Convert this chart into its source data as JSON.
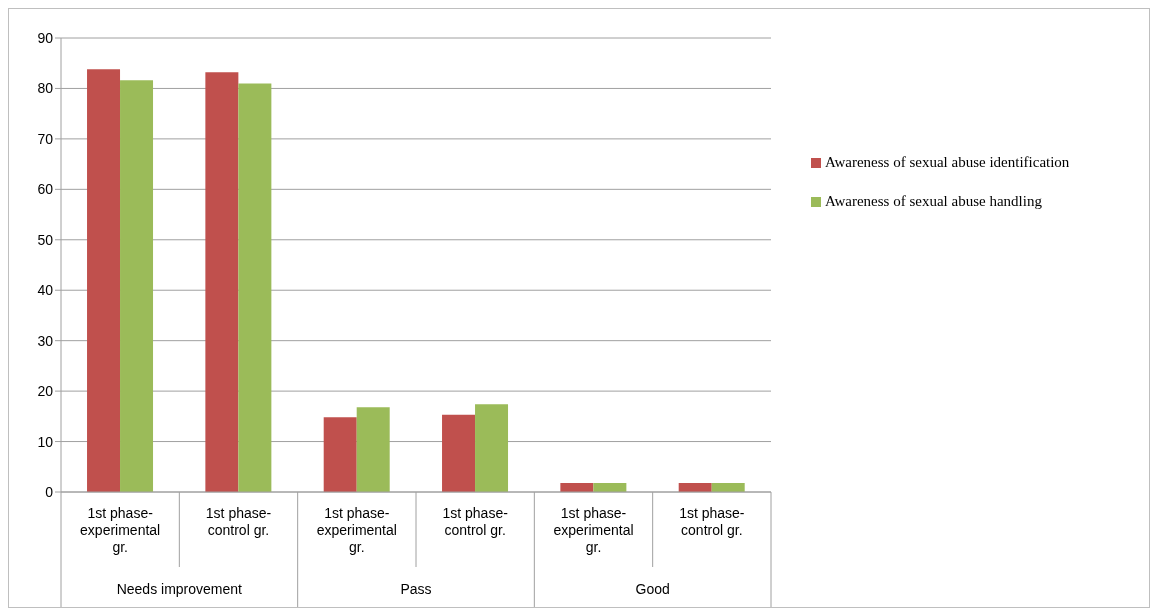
{
  "chart_data": {
    "type": "bar",
    "categories": [
      "1st phase-experimental gr.",
      "1st phase-control gr.",
      "1st phase-experimental gr.",
      "1st phase-control gr.",
      "1st phase-experimental gr.",
      "1st phase-control gr."
    ],
    "series": [
      {
        "name": "Awareness of sexual abuse identification",
        "color": "#c0504d",
        "values": [
          83.8,
          83.2,
          14.8,
          15.3,
          1.8,
          1.8
        ]
      },
      {
        "name": "Awareness of sexual abuse handling",
        "color": "#9bbb59",
        "values": [
          81.6,
          81,
          16.8,
          17.4,
          1.8,
          1.8
        ]
      }
    ],
    "annotations": [
      "Needs improvement",
      "Pass",
      "Good"
    ],
    "ylim": [
      0,
      90
    ],
    "yticks": [
      0,
      10,
      20,
      30,
      40,
      50,
      60,
      70,
      80,
      90
    ],
    "grid": "y",
    "legend": "right"
  }
}
